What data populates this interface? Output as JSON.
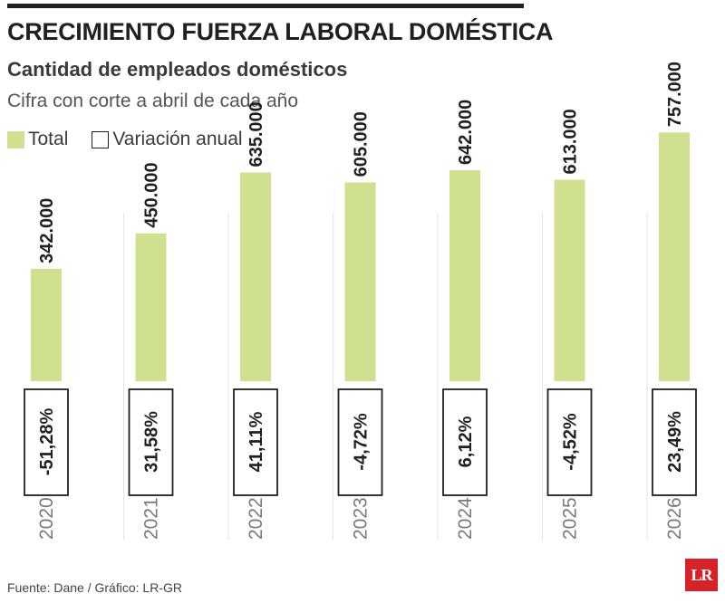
{
  "title": "CRECIMIENTO FUERZA LABORAL DOMÉSTICA",
  "subtitle": "Cantidad de empleados domésticos",
  "note": "Cifra con corte a abril de cada año",
  "legend": {
    "total": "Total",
    "variacion": "Variación anual"
  },
  "source": "Fuente: Dane / Gráfico: LR-GR",
  "logo": "LR",
  "colors": {
    "bar": "#cfe08f",
    "text": "#231f20",
    "year": "#7a7a7a",
    "logo": "#d6232a"
  },
  "chart_data": {
    "type": "bar",
    "categories": [
      "2020",
      "2021",
      "2022",
      "2023",
      "2024",
      "2025",
      "2026"
    ],
    "series": [
      {
        "name": "Total",
        "values": [
          342000,
          450000,
          635000,
          605000,
          642000,
          613000,
          757000
        ]
      }
    ],
    "value_labels": [
      "342.000",
      "450.000",
      "635.000",
      "605.000",
      "642.000",
      "613.000",
      "757.000"
    ],
    "variation_labels": [
      "-51,28%",
      "31,58%",
      "41,11%",
      "-4,72%",
      "6,12%",
      "-4,52%",
      "23,49%"
    ],
    "ylim": [
      0,
      1160000
    ],
    "grid": false,
    "legend_position": "top-left"
  }
}
